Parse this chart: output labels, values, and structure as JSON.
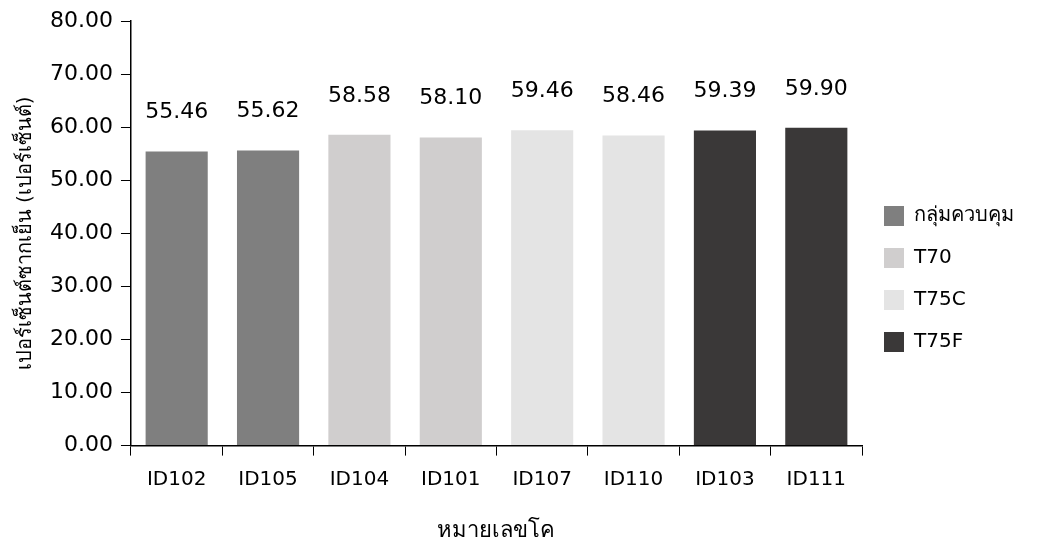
{
  "chart_data": {
    "type": "bar",
    "xlabel": "หมายเลขโค",
    "ylabel": "เปอร์เซ็นต์ซากเย็น (เปอร์เซ็นต์)",
    "categories": [
      "ID102",
      "ID105",
      "ID104",
      "ID101",
      "ID107",
      "ID110",
      "ID103",
      "ID111"
    ],
    "series": [
      {
        "name": "กลุ่มควบคุม",
        "color": "#7f7f7f",
        "values": [
          55.46,
          55.62,
          null,
          null,
          null,
          null,
          null,
          null
        ],
        "value_labels": [
          "55.46",
          "55.62",
          null,
          null,
          null,
          null,
          null,
          null
        ]
      },
      {
        "name": "T70",
        "color": "#d0cece",
        "values": [
          null,
          null,
          58.58,
          58.1,
          null,
          null,
          null,
          null
        ],
        "value_labels": [
          null,
          null,
          "58.58",
          "58.10",
          null,
          null,
          null,
          null
        ]
      },
      {
        "name": "T75C",
        "color": "#e4e4e4",
        "values": [
          null,
          null,
          null,
          null,
          59.46,
          58.46,
          null,
          null
        ],
        "value_labels": [
          null,
          null,
          null,
          null,
          "59.46",
          "58.46",
          null,
          null
        ]
      },
      {
        "name": "T75F",
        "color": "#3a3838",
        "values": [
          null,
          null,
          null,
          null,
          null,
          null,
          59.39,
          59.9
        ],
        "value_labels": [
          null,
          null,
          null,
          null,
          null,
          null,
          "59.39",
          "59.90"
        ]
      }
    ],
    "ylim": [
      0,
      80
    ],
    "yticks": [
      {
        "value": 0,
        "label": "0.00"
      },
      {
        "value": 10,
        "label": "10.00"
      },
      {
        "value": 20,
        "label": "20.00"
      },
      {
        "value": 30,
        "label": "30.00"
      },
      {
        "value": 40,
        "label": "40.00"
      },
      {
        "value": 50,
        "label": "50.00"
      },
      {
        "value": 60,
        "label": "60.00"
      },
      {
        "value": 70,
        "label": "70.00"
      },
      {
        "value": 80,
        "label": "80.00"
      }
    ],
    "grid": false,
    "legend": "right"
  }
}
